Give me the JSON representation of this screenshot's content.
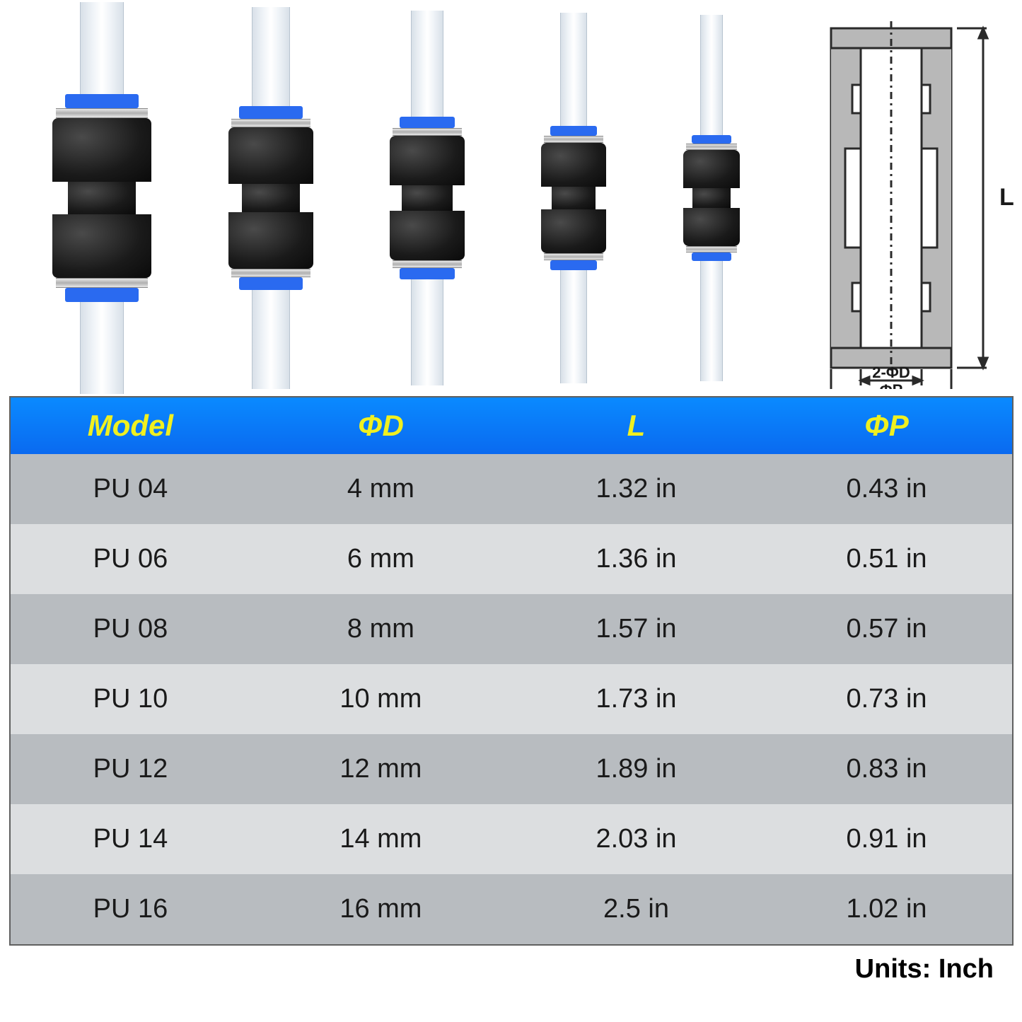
{
  "diagram": {
    "label_L": "L",
    "label_2PhiD": "2-ΦD",
    "label_PhiP": "ΦP",
    "stroke_color": "#2a2a2a",
    "fill_color": "#b8b8b8"
  },
  "connectors": [
    {
      "tube_w": 62,
      "tube_h": 130,
      "collar_w": 104,
      "collar_h": 20,
      "ring_w": 130,
      "ring_h": 14,
      "body_w": 140,
      "body_h": 90,
      "waist_w": 96,
      "waist_h": 46
    },
    {
      "tube_w": 54,
      "tube_h": 140,
      "collar_w": 90,
      "collar_h": 18,
      "ring_w": 112,
      "ring_h": 12,
      "body_w": 120,
      "body_h": 80,
      "waist_w": 82,
      "waist_h": 40
    },
    {
      "tube_w": 46,
      "tube_h": 150,
      "collar_w": 78,
      "collar_h": 16,
      "ring_w": 98,
      "ring_h": 11,
      "body_w": 106,
      "body_h": 70,
      "waist_w": 72,
      "waist_h": 36
    },
    {
      "tube_w": 38,
      "tube_h": 160,
      "collar_w": 66,
      "collar_h": 14,
      "ring_w": 84,
      "ring_h": 10,
      "body_w": 92,
      "body_h": 62,
      "waist_w": 62,
      "waist_h": 32
    },
    {
      "tube_w": 32,
      "tube_h": 170,
      "collar_w": 56,
      "collar_h": 12,
      "ring_w": 72,
      "ring_h": 9,
      "body_w": 80,
      "body_h": 54,
      "waist_w": 54,
      "waist_h": 28
    }
  ],
  "table": {
    "header_bg_gradient": [
      "#0a8aff",
      "#0a6af0"
    ],
    "header_text_color": "#f0f020",
    "row_odd_bg": "#b8bcc0",
    "row_even_bg": "#dcdee0",
    "text_color": "#1a1a1a",
    "border_color": "#606060",
    "header_fontsize": 42,
    "cell_fontsize": 38,
    "columns": [
      "Model",
      "ΦD",
      "L",
      "ΦP"
    ],
    "col_widths_pct": [
      24,
      26,
      25,
      25
    ],
    "rows": [
      [
        "PU 04",
        "4 mm",
        "1.32 in",
        "0.43 in"
      ],
      [
        "PU 06",
        "6 mm",
        "1.36 in",
        "0.51 in"
      ],
      [
        "PU 08",
        "8 mm",
        "1.57 in",
        "0.57 in"
      ],
      [
        "PU 10",
        "10 mm",
        "1.73 in",
        "0.73 in"
      ],
      [
        "PU 12",
        "12 mm",
        "1.89 in",
        "0.83 in"
      ],
      [
        "PU 14",
        "14 mm",
        "2.03 in",
        "0.91 in"
      ],
      [
        "PU 16",
        "16 mm",
        "2.5 in",
        "1.02 in"
      ]
    ]
  },
  "units_label": "Units: Inch"
}
